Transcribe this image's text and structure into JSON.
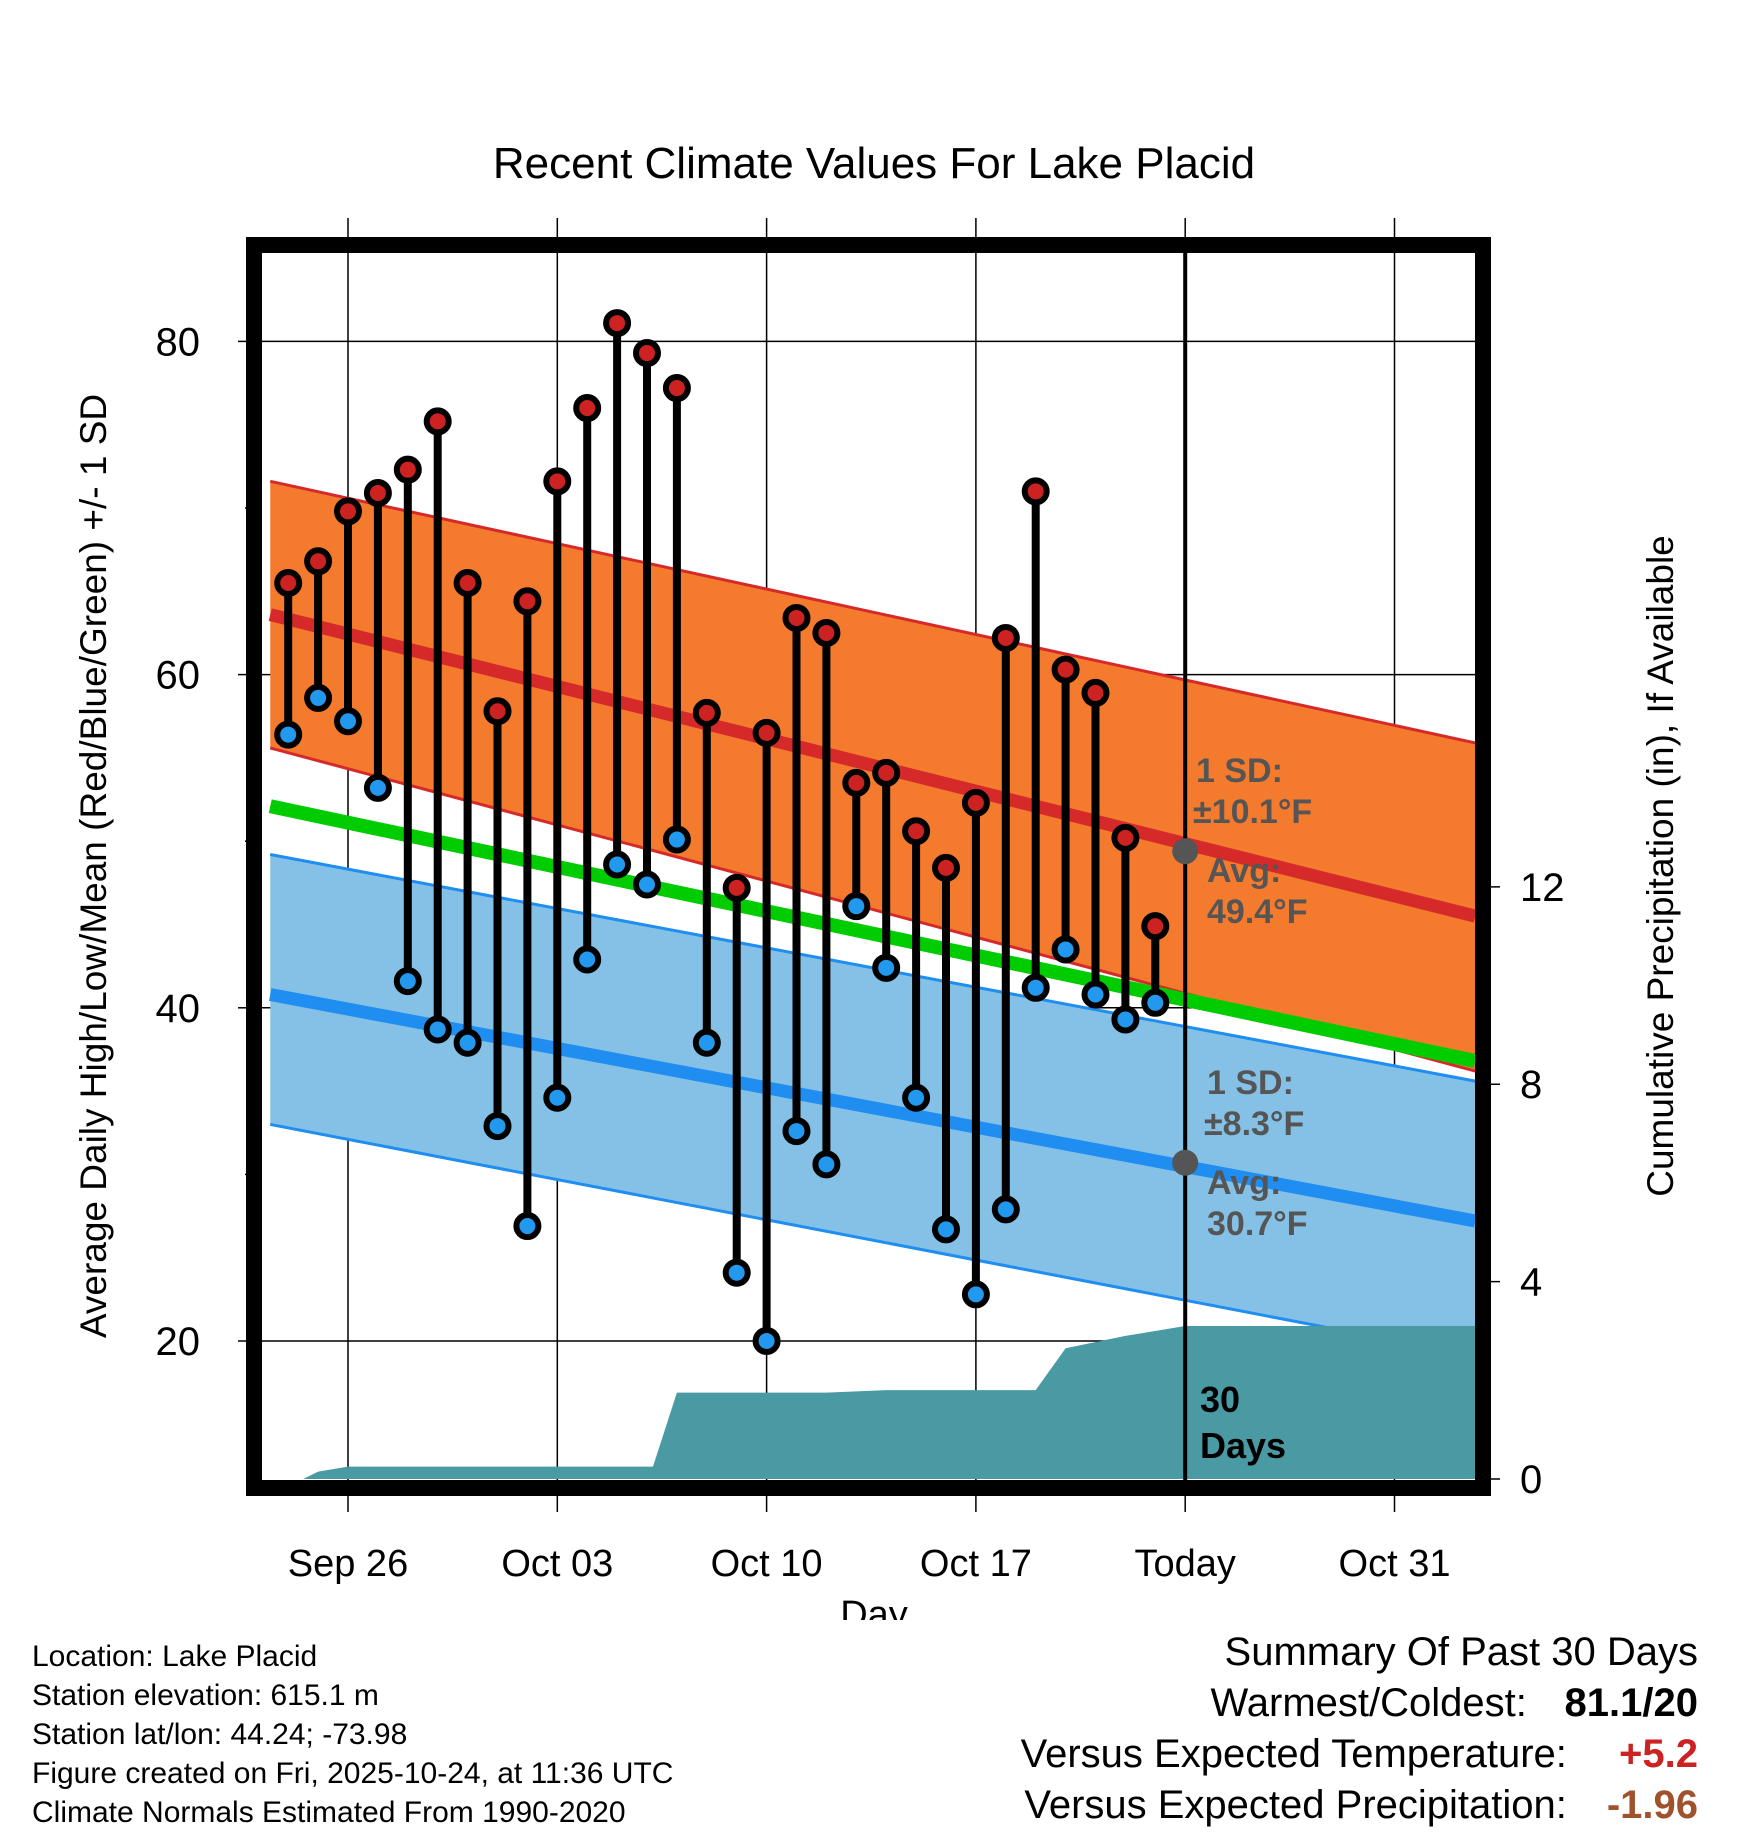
{
  "chart_data": {
    "type": "line",
    "title": "Recent Climate Values For Lake Placid",
    "xlabel": "Day",
    "ylabel": "Average Daily High/Low/Mean (Red/Blue/Green) +/- 1 SD",
    "ylabel_right": "Cumulative Precipitation (in), If Available",
    "x_tick_labels": [
      {
        "day": 0,
        "label": "Sep 26"
      },
      {
        "day": 7,
        "label": "Oct 03"
      },
      {
        "day": 14,
        "label": "Oct 10"
      },
      {
        "day": 21,
        "label": "Oct 17"
      },
      {
        "day": 28,
        "label": "Today"
      },
      {
        "day": 35,
        "label": "Oct 31"
      }
    ],
    "xlim": [
      -3.2,
      37.7
    ],
    "ylim": [
      12.5,
      86
    ],
    "y_ticks": [
      20,
      40,
      60,
      80
    ],
    "y_minor_ticks": [
      30,
      50,
      70
    ],
    "y2_ticks": [
      0,
      4,
      8,
      12
    ],
    "y2_per_temp": 0.3376,
    "normals": {
      "high_avg": {
        "x": [
          -2.6,
          37.7
        ],
        "y": [
          63.6,
          45.5
        ]
      },
      "high_sd_upper": {
        "x": [
          -2.6,
          37.7
        ],
        "y": [
          71.6,
          55.9
        ]
      },
      "high_sd_lower": {
        "x": [
          -2.6,
          37.7
        ],
        "y": [
          55.6,
          36.2
        ]
      },
      "low_avg": {
        "x": [
          -2.6,
          37.7
        ],
        "y": [
          40.8,
          27.2
        ]
      },
      "low_sd_upper": {
        "x": [
          -2.6,
          37.7
        ],
        "y": [
          49.2,
          35.6
        ]
      },
      "low_sd_lower": {
        "x": [
          -2.6,
          37.7
        ],
        "y": [
          33.0,
          19.1
        ]
      },
      "mean_avg": {
        "x": [
          -2.6,
          37.7
        ],
        "y": [
          52.1,
          36.8
        ]
      }
    },
    "series": [
      {
        "name": "High",
        "color": "#cc2222",
        "values": [
          65.5,
          66.8,
          69.8,
          70.9,
          72.3,
          75.2,
          65.5,
          57.8,
          64.4,
          71.6,
          76.0,
          81.1,
          79.3,
          77.2,
          57.7,
          47.2,
          56.5,
          63.4,
          62.5,
          53.5,
          54.1,
          50.6,
          48.4,
          52.3,
          62.2,
          71.0,
          60.3,
          58.9,
          50.2,
          44.9
        ]
      },
      {
        "name": "Low",
        "color": "#2299ee",
        "values": [
          56.4,
          58.6,
          57.2,
          53.2,
          41.6,
          38.7,
          37.9,
          32.9,
          26.9,
          34.6,
          42.9,
          48.6,
          47.4,
          50.1,
          37.9,
          24.1,
          20.0,
          32.6,
          30.6,
          46.1,
          42.4,
          34.6,
          26.7,
          22.8,
          27.9,
          41.2,
          43.5,
          40.8,
          39.3,
          40.3
        ]
      },
      {
        "name": "Cumulative Precipitation",
        "color": "#4a9aa4",
        "x": [
          -1.5,
          -1,
          0,
          10.2,
          11,
          12,
          13,
          16,
          18,
          21,
          22,
          23,
          24,
          26,
          28,
          37.7
        ],
        "values": [
          0,
          0.15,
          0.25,
          0.25,
          1.75,
          1.75,
          1.75,
          1.75,
          1.8,
          1.8,
          1.8,
          1.8,
          2.65,
          2.9,
          3.1,
          3.1
        ]
      }
    ],
    "annotations": {
      "high_sd": "1 SD:",
      "high_sd_value": "±10.1°F",
      "high_avg_label": "Avg:",
      "high_avg_value": "49.4°F",
      "low_sd": "1 SD:",
      "low_sd_value": "±8.3°F",
      "low_avg_label": "Avg:",
      "low_avg_value": "30.7°F",
      "days_num": "30",
      "days_label": "Days"
    },
    "colors": {
      "high_band": "#f47a2e",
      "high_line": "#d62a2a",
      "low_band": "#85c1e6",
      "low_line": "#1f8ef0",
      "mean_line": "#00cc00",
      "precip": "#4a9aa4",
      "annotation": "#555555"
    }
  },
  "footer": {
    "location": "Location: Lake Placid",
    "elevation": "Station elevation: 615.1 m",
    "latlon": "Station lat/lon: 44.24; -73.98",
    "created": "Figure created on Fri, 2025-10-24, at 11:36 UTC",
    "normals": "Climate Normals Estimated From 1990-2020"
  },
  "summary": {
    "title": "Summary Of Past 30 Days",
    "warm_cold_label": "Warmest/Coldest:",
    "warm_cold_value": "81.1/20",
    "temp_label": "Versus Expected Temperature:",
    "temp_value": "+5.2",
    "temp_color": "#cc2222",
    "precip_label": "Versus Expected Precipitation:",
    "precip_value": "-1.96",
    "precip_color": "#a0522d"
  }
}
